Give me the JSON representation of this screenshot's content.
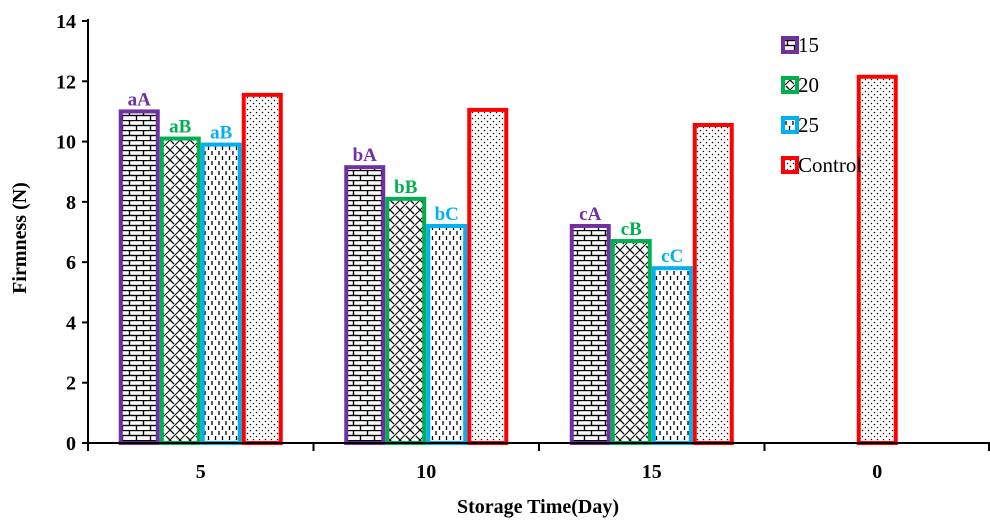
{
  "chart_data": {
    "type": "bar",
    "xlabel": "Storage Time(Day)",
    "ylabel": "Firmness (N)",
    "categories": [
      "5",
      "10",
      "15",
      "0"
    ],
    "ylim": [
      0,
      14
    ],
    "yticks": [
      0,
      2,
      4,
      6,
      8,
      10,
      12,
      14
    ],
    "grid": false,
    "legend_position": "top-right",
    "series": [
      {
        "name": "15",
        "color": "#7030A0",
        "pattern": "brick",
        "values": [
          11.0,
          9.15,
          7.2,
          null
        ],
        "labels": [
          "aA",
          "bA",
          "cA",
          ""
        ]
      },
      {
        "name": "20",
        "color": "#00B050",
        "pattern": "diagonal-weave",
        "values": [
          10.1,
          8.1,
          6.7,
          null
        ],
        "labels": [
          "aB",
          "bB",
          "cB",
          ""
        ]
      },
      {
        "name": "25",
        "color": "#00B0F0",
        "pattern": "dashed-vertical",
        "values": [
          9.9,
          7.2,
          5.8,
          null
        ],
        "labels": [
          "aB",
          "bC",
          "cC",
          ""
        ]
      },
      {
        "name": "Control",
        "color": "#FF0000",
        "pattern": "dots",
        "values": [
          11.55,
          11.05,
          10.55,
          12.15
        ],
        "labels": [
          "",
          "",
          "",
          ""
        ]
      }
    ]
  }
}
